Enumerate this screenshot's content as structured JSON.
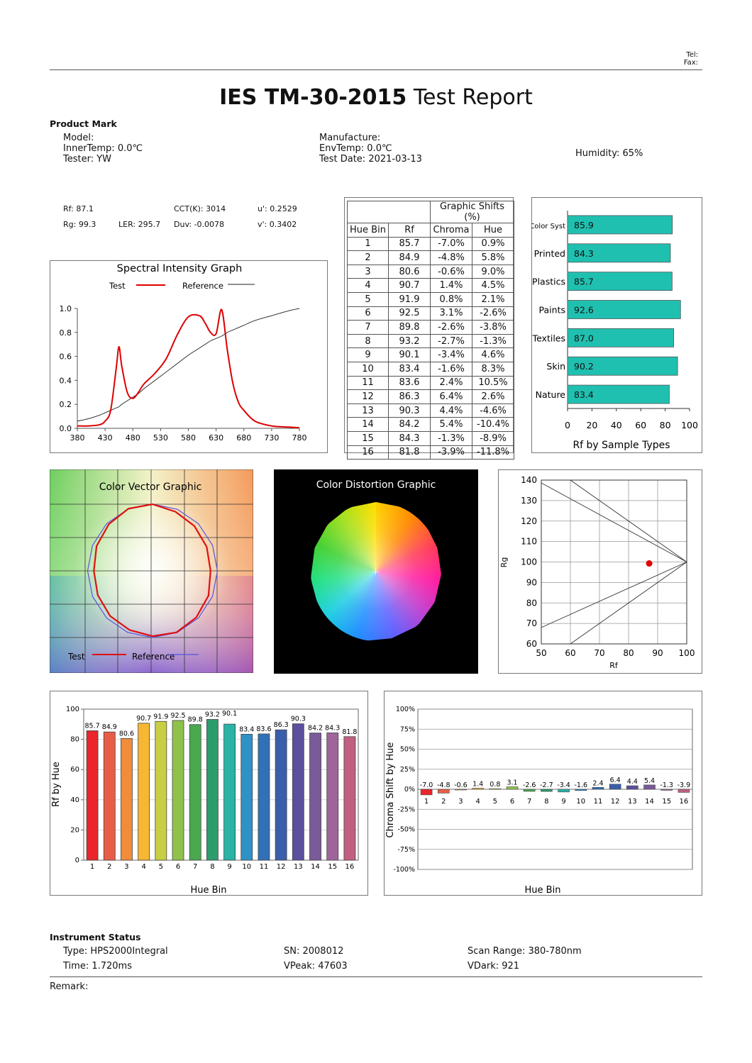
{
  "header": {
    "tel": "Tel:",
    "fax": "Fax:",
    "title_bold": "IES TM-30-2015",
    "title_rest": " Test Report"
  },
  "product": {
    "heading": "Product Mark",
    "model": "Model:",
    "inner_temp": "InnerTemp: 0.0℃",
    "tester": "Tester: YW",
    "manufacture": "Manufacture:",
    "env_temp": "EnvTemp: 0.0℃",
    "test_date": "Test Date: 2021-03-13",
    "humidity": "Humidity: 65%"
  },
  "metrics": {
    "rf": "Rf:  87.1",
    "cct": "CCT(K):  3014",
    "u": "u':  0.2529",
    "rg": "Rg:  99.3",
    "ler": "LER:  295.7",
    "duv": "Duv:  -0.0078",
    "v": "v':  0.3402"
  },
  "spectral": {
    "title": "Spectral Intensity Graph",
    "legend_test": "Test",
    "legend_ref": "Reference",
    "x_ticks": [
      "380",
      "430",
      "480",
      "530",
      "580",
      "630",
      "680",
      "730",
      "780"
    ],
    "y_ticks": [
      "0.0",
      "0.2",
      "0.4",
      "0.6",
      "0.8",
      "1.0"
    ],
    "test_color": "#dd0000",
    "ref_color": "#222222"
  },
  "hue_table": {
    "group_header": "Graphic Shifts (%)",
    "headers": [
      "Hue Bin",
      "Rf",
      "Chroma",
      "Hue"
    ],
    "rows": [
      [
        "1",
        "85.7",
        "-7.0%",
        "0.9%"
      ],
      [
        "2",
        "84.9",
        "-4.8%",
        "5.8%"
      ],
      [
        "3",
        "80.6",
        "-0.6%",
        "9.0%"
      ],
      [
        "4",
        "90.7",
        "1.4%",
        "4.5%"
      ],
      [
        "5",
        "91.9",
        "0.8%",
        "2.1%"
      ],
      [
        "6",
        "92.5",
        "3.1%",
        "-2.6%"
      ],
      [
        "7",
        "89.8",
        "-2.6%",
        "-3.8%"
      ],
      [
        "8",
        "93.2",
        "-2.7%",
        "-1.3%"
      ],
      [
        "9",
        "90.1",
        "-3.4%",
        "4.6%"
      ],
      [
        "10",
        "83.4",
        "-1.6%",
        "8.3%"
      ],
      [
        "11",
        "83.6",
        "2.4%",
        "10.5%"
      ],
      [
        "12",
        "86.3",
        "6.4%",
        "2.6%"
      ],
      [
        "13",
        "90.3",
        "4.4%",
        "-4.6%"
      ],
      [
        "14",
        "84.2",
        "5.4%",
        "-10.4%"
      ],
      [
        "15",
        "84.3",
        "-1.3%",
        "-8.9%"
      ],
      [
        "16",
        "81.8",
        "-3.9%",
        "-11.8%"
      ]
    ]
  },
  "sample_types": {
    "title": "Rf by Sample Types",
    "bar_color": "#20c0b0",
    "x_ticks": [
      "0",
      "20",
      "40",
      "60",
      "80",
      "100"
    ],
    "items": [
      {
        "label": "Color Syst",
        "value": 85.9,
        "text": "85.9"
      },
      {
        "label": "Printed",
        "value": 84.3,
        "text": "84.3"
      },
      {
        "label": "Plastics",
        "value": 85.7,
        "text": "85.7"
      },
      {
        "label": "Paints",
        "value": 92.6,
        "text": "92.6"
      },
      {
        "label": "Textiles",
        "value": 87.0,
        "text": "87.0"
      },
      {
        "label": "Skin",
        "value": 90.2,
        "text": "90.2"
      },
      {
        "label": "Nature",
        "value": 83.4,
        "text": "83.4"
      }
    ]
  },
  "color_vector": {
    "title": "Color Vector Graphic",
    "legend_test": "Test",
    "legend_ref": "Reference",
    "test_color": "#dd1111",
    "ref_color": "#5555dd"
  },
  "color_distortion": {
    "title": "Color Distortion Graphic"
  },
  "rg_rf": {
    "x_label": "Rf",
    "y_label": "Rg",
    "x_ticks": [
      "50",
      "60",
      "70",
      "80",
      "90",
      "100"
    ],
    "y_ticks": [
      "60",
      "70",
      "80",
      "90",
      "100",
      "110",
      "120",
      "130",
      "140"
    ],
    "point": {
      "rf": 87.1,
      "rg": 99.3
    },
    "point_color": "#e00000"
  },
  "rf_by_hue": {
    "y_label": "Rf by Hue",
    "x_label": "Hue Bin",
    "y_ticks": [
      "0",
      "20",
      "40",
      "60",
      "80",
      "100"
    ],
    "categories": [
      "1",
      "2",
      "3",
      "4",
      "5",
      "6",
      "7",
      "8",
      "9",
      "10",
      "11",
      "12",
      "13",
      "14",
      "15",
      "16"
    ],
    "values": [
      85.7,
      84.9,
      80.6,
      90.7,
      91.9,
      92.5,
      89.8,
      93.2,
      90.1,
      83.4,
      83.6,
      86.3,
      90.3,
      84.2,
      84.3,
      81.8
    ],
    "labels": [
      "85.7",
      "84.9",
      "80.6",
      "90.7",
      "91.9",
      "92.5",
      "89.8",
      "93.2",
      "90.1",
      "83.4",
      "83.6",
      "86.3",
      "90.3",
      "84.2",
      "84.3",
      "81.8"
    ],
    "colors": [
      "#e8262b",
      "#e85d48",
      "#f08c3a",
      "#f7b733",
      "#c9cf43",
      "#8fc24a",
      "#4aa84f",
      "#2d9c6d",
      "#28b3a5",
      "#2f91c8",
      "#3171b8",
      "#3a5eaa",
      "#5b4f9e",
      "#7a5a98",
      "#a0649c",
      "#c0607e"
    ]
  },
  "chroma_by_hue": {
    "y_label": "Chroma Shift by Hue",
    "x_label": "Hue Bin",
    "y_ticks": [
      "100%",
      "75%",
      "50%",
      "25%",
      "0%",
      "-25%",
      "-50%",
      "-75%",
      "-100%"
    ],
    "categories": [
      "1",
      "2",
      "3",
      "4",
      "5",
      "6",
      "7",
      "8",
      "9",
      "10",
      "11",
      "12",
      "13",
      "14",
      "15",
      "16"
    ],
    "values": [
      -7.0,
      -4.8,
      -0.6,
      1.4,
      0.8,
      3.1,
      -2.6,
      -2.7,
      -3.4,
      -1.6,
      2.4,
      6.4,
      4.4,
      5.4,
      -1.3,
      -3.9
    ],
    "labels": [
      "-7.0",
      "-4.8",
      "-0.6",
      "1.4",
      "0.8",
      "3.1",
      "-2.6",
      "-2.7",
      "-3.4",
      "-1.6",
      "2.4",
      "6.4",
      "4.4",
      "5.4",
      "-1.3",
      "-3.9"
    ]
  },
  "instrument": {
    "heading": "Instrument Status",
    "type": "Type: HPS2000Integral",
    "sn": "SN: 2008012",
    "scan_range": "Scan Range: 380-780nm",
    "time": "Time: 1.720ms",
    "vpeak": "VPeak: 47603",
    "vdark": "VDark: 921",
    "remark": "Remark:"
  },
  "chart_data": [
    {
      "type": "line",
      "title": "Spectral Intensity Graph",
      "xlabel": "",
      "ylabel": "",
      "xlim": [
        380,
        780
      ],
      "ylim": [
        0,
        1.0
      ],
      "x": [
        380,
        400,
        420,
        430,
        440,
        450,
        455,
        460,
        470,
        480,
        490,
        500,
        520,
        540,
        560,
        580,
        600,
        610,
        620,
        630,
        640,
        650,
        660,
        670,
        680,
        700,
        730,
        760,
        780
      ],
      "series": [
        {
          "name": "Test",
          "values": [
            0.02,
            0.02,
            0.03,
            0.06,
            0.15,
            0.5,
            0.68,
            0.52,
            0.3,
            0.25,
            0.3,
            0.37,
            0.46,
            0.58,
            0.78,
            0.93,
            0.94,
            0.88,
            0.8,
            0.79,
            0.99,
            0.66,
            0.38,
            0.22,
            0.15,
            0.06,
            0.02,
            0.01,
            0.005
          ]
        },
        {
          "name": "Reference",
          "values": [
            0.06,
            0.08,
            0.11,
            0.13,
            0.15,
            0.17,
            0.18,
            0.2,
            0.23,
            0.26,
            0.29,
            0.33,
            0.4,
            0.47,
            0.54,
            0.61,
            0.67,
            0.7,
            0.73,
            0.75,
            0.77,
            0.8,
            0.82,
            0.84,
            0.86,
            0.9,
            0.94,
            0.98,
            1.0
          ]
        }
      ]
    },
    {
      "type": "bar",
      "title": "Rf by Sample Types",
      "categories": [
        "Color Syst",
        "Printed",
        "Plastics",
        "Paints",
        "Textiles",
        "Skin",
        "Nature"
      ],
      "values": [
        85.9,
        84.3,
        85.7,
        92.6,
        87.0,
        90.2,
        83.4
      ],
      "xlim": [
        0,
        100
      ]
    },
    {
      "type": "scatter",
      "xlabel": "Rf",
      "ylabel": "Rg",
      "xlim": [
        50,
        100
      ],
      "ylim": [
        60,
        140
      ],
      "x": [
        87.1
      ],
      "y": [
        99.3
      ]
    },
    {
      "type": "bar",
      "xlabel": "Hue Bin",
      "ylabel": "Rf by Hue",
      "categories": [
        "1",
        "2",
        "3",
        "4",
        "5",
        "6",
        "7",
        "8",
        "9",
        "10",
        "11",
        "12",
        "13",
        "14",
        "15",
        "16"
      ],
      "values": [
        85.7,
        84.9,
        80.6,
        90.7,
        91.9,
        92.5,
        89.8,
        93.2,
        90.1,
        83.4,
        83.6,
        86.3,
        90.3,
        84.2,
        84.3,
        81.8
      ],
      "ylim": [
        0,
        100
      ]
    },
    {
      "type": "bar",
      "xlabel": "Hue Bin",
      "ylabel": "Chroma Shift by Hue",
      "categories": [
        "1",
        "2",
        "3",
        "4",
        "5",
        "6",
        "7",
        "8",
        "9",
        "10",
        "11",
        "12",
        "13",
        "14",
        "15",
        "16"
      ],
      "values": [
        -7.0,
        -4.8,
        -0.6,
        1.4,
        0.8,
        3.1,
        -2.6,
        -2.7,
        -3.4,
        -1.6,
        2.4,
        6.4,
        4.4,
        5.4,
        -1.3,
        -3.9
      ],
      "ylim": [
        -100,
        100
      ]
    }
  ]
}
